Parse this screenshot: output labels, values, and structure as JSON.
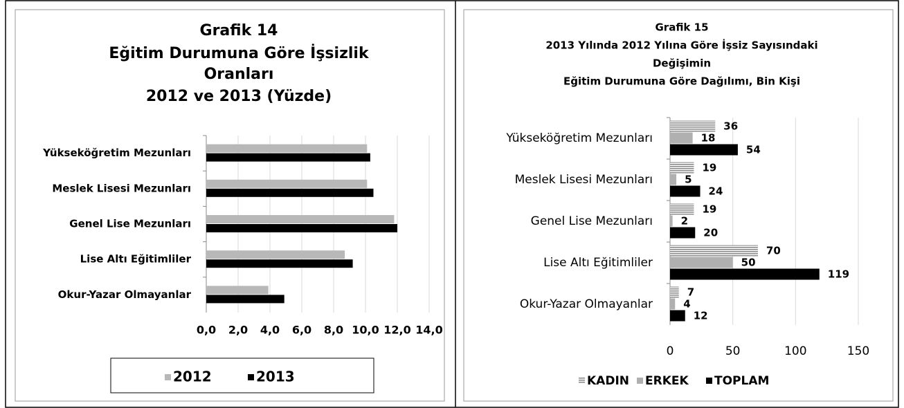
{
  "chart_data": [
    {
      "type": "hbar",
      "title": [
        "Grafik 14",
        "Eğitim Durumuna Göre İşsizlik",
        "Oranları",
        "2012 ve 2013 (Yüzde)"
      ],
      "categories": [
        "Yükseköğretim Mezunları",
        "Meslek Lisesi Mezunları",
        "Genel Lise Mezunları",
        "Lise Altı Eğitimliler",
        "Okur-Yazar Olmayanlar"
      ],
      "series": [
        {
          "name": "2012",
          "color": "#b8b8b8",
          "values": [
            10.1,
            10.1,
            11.8,
            8.7,
            3.9
          ]
        },
        {
          "name": "2013",
          "color": "#000000",
          "values": [
            10.3,
            10.5,
            12.0,
            9.2,
            4.9
          ]
        }
      ],
      "xlim": [
        0,
        14
      ],
      "xticks": [
        {
          "value": 0,
          "label": "0,0"
        },
        {
          "value": 2,
          "label": "2,0"
        },
        {
          "value": 4,
          "label": "4,0"
        },
        {
          "value": 6,
          "label": "6,0"
        },
        {
          "value": 8,
          "label": "8,0"
        },
        {
          "value": 10,
          "label": "10,0"
        },
        {
          "value": 12,
          "label": "12,0"
        },
        {
          "value": 14,
          "label": "14,0"
        }
      ],
      "grid": true,
      "legend": "bottom"
    },
    {
      "type": "hbar",
      "title": [
        "Grafik 15",
        "2013 Yılında 2012 Yılına Göre İşsiz Sayısındaki",
        "Değişimin",
        "Eğitim Durumuna Göre Dağılımı, Bin Kişi"
      ],
      "categories": [
        "Yükseköğretim Mezunları",
        "Meslek Lisesi Mezunları",
        "Genel Lise Mezunları",
        "Lise Altı Eğitimliler",
        "Okur-Yazar Olmayanlar"
      ],
      "series": [
        {
          "name": "KADIN",
          "color": "#8c8c8c",
          "pattern": "horizontal-stripes",
          "values": [
            36,
            19,
            19,
            70,
            7
          ]
        },
        {
          "name": "ERKEK",
          "color": "#b0b0b0",
          "values": [
            18,
            5,
            2,
            50,
            4
          ]
        },
        {
          "name": "TOPLAM",
          "color": "#000000",
          "values": [
            54,
            24,
            20,
            119,
            12
          ]
        }
      ],
      "xlim": [
        0,
        150
      ],
      "xticks": [
        0,
        50,
        100,
        150
      ],
      "grid": true,
      "legend": "bottom",
      "data_labels": true
    }
  ]
}
